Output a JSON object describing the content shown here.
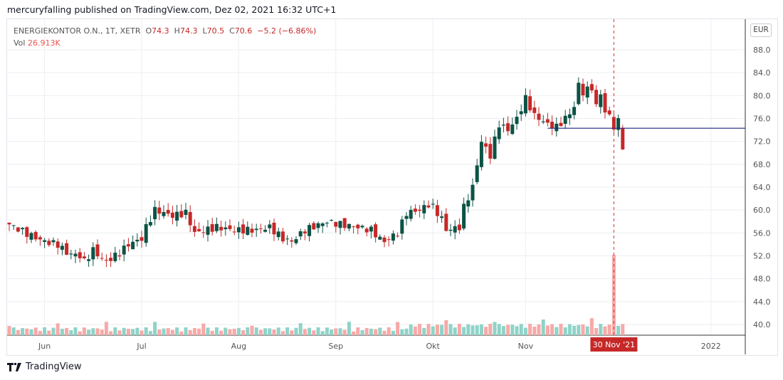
{
  "header": {
    "published": "mercuryfalling published on TradingView.com, Dez 02, 2021 16:32 UTC+1"
  },
  "legend": {
    "symbol": "ENERGIEKONTOR O.N., 1T, XETR",
    "o_label": "O",
    "o": "74.3",
    "h_label": "H",
    "h": "74.3",
    "l_label": "L",
    "l": "70.5",
    "c_label": "C",
    "c": "70.6",
    "change": "−5.2 (−6.86%)",
    "vol_label": "Vol",
    "vol": "26.913K"
  },
  "currency": "EUR",
  "crosshair_label": "30 Nov '21",
  "footer": {
    "brand": "TradingView"
  },
  "colors": {
    "up": "#0b5345",
    "down": "#c62828",
    "vol_up": "#8fd3c8",
    "vol_down": "#f7a9a7",
    "crosshair": "#d32f2f",
    "hline": "#1a237e"
  },
  "chart_data": {
    "type": "candlestick",
    "y_ticks": [
      "88.0",
      "84.0",
      "80.0",
      "76.0",
      "72.0",
      "68.0",
      "64.0",
      "60.0",
      "56.0",
      "52.0",
      "48.0",
      "44.0",
      "40.0"
    ],
    "ylim": [
      38.5,
      89
    ],
    "x_ticks": [
      {
        "label": "Jun",
        "i": 8
      },
      {
        "label": "Jul",
        "i": 30
      },
      {
        "label": "Aug",
        "i": 52
      },
      {
        "label": "Sep",
        "i": 74
      },
      {
        "label": "Okt",
        "i": 96
      },
      {
        "label": "Nov",
        "i": 117
      },
      {
        "label": "2022",
        "i": 159
      }
    ],
    "close_keypoints": [
      [
        0,
        57.5
      ],
      [
        5,
        55.5
      ],
      [
        8,
        54.5
      ],
      [
        11,
        54
      ],
      [
        13,
        52.5
      ],
      [
        16,
        52
      ],
      [
        17,
        51
      ],
      [
        19,
        53
      ],
      [
        21,
        51.5
      ],
      [
        22,
        51
      ],
      [
        25,
        52.5
      ],
      [
        27,
        54
      ],
      [
        30,
        55
      ],
      [
        31,
        57
      ],
      [
        33,
        60
      ],
      [
        35,
        59.5
      ],
      [
        37,
        59
      ],
      [
        40,
        59.5
      ],
      [
        42,
        56
      ],
      [
        47,
        57
      ],
      [
        51,
        56.5
      ],
      [
        56,
        56.5
      ],
      [
        59,
        57
      ],
      [
        62,
        55
      ],
      [
        64,
        54.5
      ],
      [
        67,
        56.5
      ],
      [
        72,
        58
      ],
      [
        75,
        57.5
      ],
      [
        79,
        57
      ],
      [
        82,
        56.5
      ],
      [
        84,
        55
      ],
      [
        85,
        54.5
      ],
      [
        88,
        56
      ],
      [
        90,
        59.5
      ],
      [
        93,
        60
      ],
      [
        95,
        61
      ],
      [
        96,
        60.5
      ],
      [
        98,
        58.5
      ],
      [
        99,
        56.5
      ],
      [
        102,
        57
      ],
      [
        103,
        60.5
      ],
      [
        105,
        64
      ],
      [
        107,
        72
      ],
      [
        109,
        69.5
      ],
      [
        111,
        75
      ],
      [
        113,
        74
      ],
      [
        115,
        76
      ],
      [
        117,
        79.5
      ],
      [
        119,
        76.5
      ],
      [
        122,
        75
      ],
      [
        124,
        74.5
      ],
      [
        126,
        76
      ],
      [
        128,
        78
      ],
      [
        129,
        82
      ],
      [
        130,
        80.5
      ],
      [
        132,
        81.5
      ],
      [
        133,
        78
      ],
      [
        134,
        80.5
      ],
      [
        135,
        77
      ],
      [
        136,
        76.5
      ],
      [
        137,
        74.5
      ],
      [
        138,
        75.5
      ],
      [
        139,
        70.6
      ]
    ],
    "last_candle": {
      "open": 74.3,
      "high": 74.3,
      "low": 70.5,
      "close": 70.6,
      "volume": "26.913K"
    },
    "horizontal_line": 74.3,
    "crosshair_index": 137
  }
}
